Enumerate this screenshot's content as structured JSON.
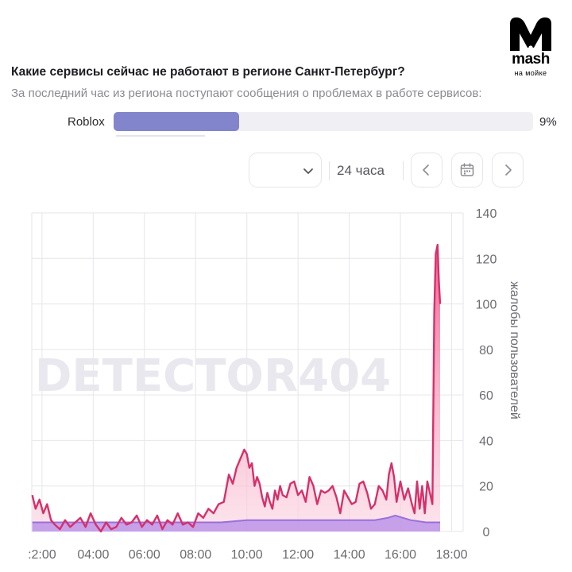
{
  "logo": {
    "wordmark": "mash",
    "tagline": "на мойке"
  },
  "header": {
    "question": "Какие сервисы сейчас не работают в регионе Санкт-Петербург?",
    "subtitle": "За последний час из региона поступают сообщения о проблемах в работе сервисов:"
  },
  "services": [
    {
      "name": "Roblox",
      "percent_label": "9%",
      "fill_fraction": 0.3
    }
  ],
  "controls": {
    "select_value": "",
    "range_label": "24 часа",
    "prev_icon": "chevron-left-icon",
    "calendar_icon": "calendar-icon",
    "next_icon": "chevron-right-icon"
  },
  "watermark": "DETECTOR404",
  "colors": {
    "accent_bar": "#8385cc",
    "reports_line": "#d6306a",
    "baseline_line": "#9b6fd9",
    "grid": "#e6e6ec",
    "axis_text": "#6b6b72"
  },
  "chart_data": {
    "type": "area",
    "title": "",
    "xlabel": "",
    "ylabel": "жалобы пользователей",
    "x_ticks": [
      ":2:00",
      "04:00",
      "06:00",
      "08:00",
      "10:00",
      "12:00",
      "14:00",
      "16:00",
      "18:00"
    ],
    "y_ticks": [
      0,
      20,
      40,
      60,
      80,
      100,
      120,
      140
    ],
    "ylim": [
      0,
      140
    ],
    "xlim_hours": [
      1.6,
      18.45
    ],
    "grid": true,
    "series": [
      {
        "x": [
          1.62,
          1.75,
          1.9,
          2.05,
          2.2,
          2.35,
          2.5,
          2.7,
          2.9,
          3.1,
          3.3,
          3.5,
          3.7,
          3.9,
          4.1,
          4.3,
          4.5,
          4.7,
          4.9,
          5.1,
          5.3,
          5.5,
          5.7,
          5.9,
          6.1,
          6.3,
          6.5,
          6.7,
          6.9,
          7.1,
          7.3,
          7.5,
          7.7,
          7.9,
          8.1,
          8.3,
          8.5,
          8.7,
          8.9,
          9.1,
          9.3,
          9.45,
          9.6,
          9.75,
          9.9,
          10.0,
          10.1,
          10.2,
          10.3,
          10.4,
          10.5,
          10.6,
          10.7,
          10.8,
          10.9,
          11.0,
          11.1,
          11.2,
          11.3,
          11.4,
          11.55,
          11.7,
          11.85,
          12.0,
          12.15,
          12.3,
          12.45,
          12.6,
          12.75,
          12.9,
          13.05,
          13.2,
          13.35,
          13.5,
          13.65,
          13.8,
          13.95,
          14.1,
          14.25,
          14.4,
          14.55,
          14.7,
          14.85,
          15.0,
          15.15,
          15.3,
          15.45,
          15.55,
          15.65,
          15.75,
          15.85,
          16.0,
          16.15,
          16.3,
          16.45,
          16.55,
          16.65,
          16.75,
          16.85,
          16.95,
          17.05,
          17.15,
          17.25,
          17.32,
          17.38,
          17.45,
          17.5,
          17.55
        ],
        "y": [
          16,
          10,
          14,
          8,
          12,
          5,
          3,
          1,
          5,
          2,
          4,
          6,
          2,
          8,
          3,
          0,
          4,
          1,
          2,
          6,
          3,
          4,
          7,
          2,
          5,
          3,
          7,
          1,
          5,
          3,
          8,
          3,
          4,
          2,
          8,
          6,
          10,
          8,
          12,
          13,
          25,
          21,
          28,
          32,
          36,
          34,
          28,
          30,
          20,
          24,
          21,
          15,
          11,
          17,
          13,
          10,
          18,
          14,
          20,
          16,
          15,
          21,
          22,
          16,
          18,
          13,
          24,
          20,
          12,
          18,
          17,
          18,
          20,
          15,
          8,
          18,
          15,
          12,
          13,
          21,
          22,
          17,
          10,
          12,
          20,
          18,
          14,
          25,
          30,
          24,
          13,
          22,
          14,
          19,
          12,
          8,
          22,
          10,
          20,
          8,
          22,
          17,
          12,
          96,
          122,
          126,
          110,
          100
        ]
      },
      {
        "x": [
          1.62,
          3.0,
          4.5,
          6.0,
          7.5,
          9.0,
          10.0,
          11.0,
          12.5,
          14.0,
          15.0,
          15.5,
          15.8,
          16.1,
          16.4,
          17.0,
          17.55
        ],
        "y": [
          4,
          4,
          4,
          4,
          4,
          4,
          5,
          5,
          5,
          5,
          5,
          6,
          7,
          6,
          5,
          4,
          4
        ]
      }
    ]
  }
}
